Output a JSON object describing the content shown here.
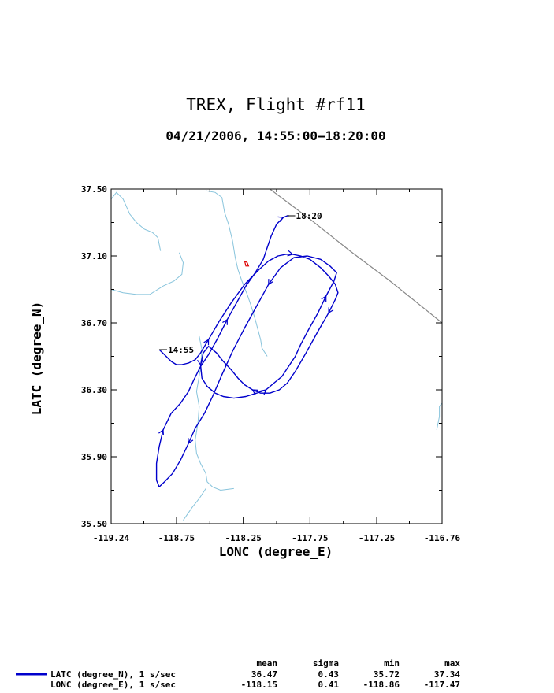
{
  "chart_data": {
    "type": "line",
    "title": "TREX, Flight #rf11",
    "subtitle": "04/21/2006, 14:55:00–18:20:00",
    "xlabel": "LONC (degree_E)",
    "ylabel": "LATC (degree_N)",
    "xlim": [
      -119.24,
      -116.76
    ],
    "ylim": [
      35.5,
      37.5
    ],
    "x_tick_labels": [
      "-119.24",
      "-118.75",
      "-118.25",
      "-117.75",
      "-117.25",
      "-116.76"
    ],
    "x_tick_values": [
      -119.24,
      -118.75,
      -118.25,
      -117.75,
      -117.25,
      -116.76
    ],
    "y_tick_labels": [
      "37.50",
      "37.10",
      "36.70",
      "36.30",
      "35.90",
      "35.50"
    ],
    "y_tick_values": [
      37.5,
      37.1,
      36.7,
      36.3,
      35.9,
      35.5
    ],
    "grid": false,
    "colors": {
      "flight_track": "#0000cc",
      "rivers": "#88c4dc",
      "border": "#888888",
      "lake": "#dd0000"
    },
    "annotations": [
      {
        "text": "14:55",
        "x": -118.88,
        "y": 36.54
      },
      {
        "text": "18:20",
        "x": -117.92,
        "y": 37.34
      }
    ],
    "series": [
      {
        "name": "LATC (degree_N), 1 s/sec",
        "x": [
          -118.88,
          -118.84,
          -118.79,
          -118.75,
          -118.71,
          -118.66,
          -118.61,
          -118.57,
          -118.51,
          -118.43,
          -118.34,
          -118.24,
          -118.13,
          -118.06,
          -117.99,
          -117.93,
          -117.88,
          -117.82,
          -117.75,
          -117.67,
          -117.61,
          -117.56,
          -117.54,
          -117.56,
          -117.61,
          -117.69,
          -117.78,
          -117.86,
          -117.92,
          -117.98,
          -118.05,
          -118.12,
          -118.18,
          -118.24,
          -118.29,
          -118.34,
          -118.4,
          -118.45,
          -118.51,
          -118.55,
          -118.57,
          -118.56,
          -118.52,
          -118.46,
          -118.4,
          -118.32,
          -118.23,
          -118.15,
          -118.08,
          -118.02,
          -117.96,
          -117.91,
          -117.86,
          -117.82,
          -117.76,
          -117.69,
          -117.63,
          -117.57,
          -117.55,
          -117.6,
          -117.67,
          -117.77,
          -117.87,
          -117.97,
          -118.06,
          -118.15,
          -118.24,
          -118.33,
          -118.41,
          -118.48,
          -118.54,
          -118.61,
          -118.66,
          -118.72,
          -118.78,
          -118.84,
          -118.88,
          -118.9,
          -118.9,
          -118.88,
          -118.85,
          -118.79,
          -118.72,
          -118.66,
          -118.62,
          -118.57,
          -118.51,
          -118.44,
          -118.37,
          -118.3,
          -118.23,
          -118.16,
          -118.1,
          -118.07,
          -118.04,
          -118.0,
          -117.95,
          -117.92,
          -117.91,
          -117.92
        ],
        "y": [
          36.54,
          36.51,
          36.47,
          36.45,
          36.45,
          36.46,
          36.48,
          36.52,
          36.6,
          36.71,
          36.82,
          36.93,
          37.02,
          37.07,
          37.1,
          37.11,
          37.11,
          37.1,
          37.08,
          37.03,
          36.98,
          36.93,
          36.88,
          36.84,
          36.76,
          36.65,
          36.52,
          36.41,
          36.34,
          36.3,
          36.28,
          36.28,
          36.3,
          36.33,
          36.37,
          36.42,
          36.47,
          36.52,
          36.56,
          36.52,
          36.45,
          36.37,
          36.32,
          36.28,
          36.26,
          36.25,
          36.26,
          36.28,
          36.3,
          36.34,
          36.38,
          36.44,
          36.5,
          36.57,
          36.66,
          36.76,
          36.86,
          36.95,
          37.0,
          37.04,
          37.08,
          37.1,
          37.09,
          37.03,
          36.93,
          36.8,
          36.67,
          36.53,
          36.39,
          36.26,
          36.16,
          36.07,
          35.98,
          35.88,
          35.8,
          35.75,
          35.72,
          35.76,
          35.86,
          35.96,
          36.06,
          36.16,
          36.22,
          36.29,
          36.36,
          36.44,
          36.51,
          36.61,
          36.72,
          36.82,
          36.92,
          37.0,
          37.08,
          37.15,
          37.22,
          37.29,
          37.33,
          37.34,
          37.34,
          37.34
        ]
      }
    ],
    "legend": {
      "placement": "bottom",
      "headers": [
        "mean",
        "sigma",
        "min",
        "max"
      ],
      "rows": [
        {
          "label": "LATC (degree_N), 1 s/sec",
          "mean": "36.47",
          "sigma": "0.43",
          "min": "35.72",
          "max": "37.34"
        },
        {
          "label": "LONC (degree_E), 1 s/sec",
          "mean": "-118.15",
          "sigma": "0.41",
          "min": "-118.86",
          "max": "-117.47"
        }
      ]
    },
    "map_features": {
      "rivers": [
        {
          "x": [
            -119.24,
            -119.2,
            -119.15,
            -119.1,
            -119.05,
            -118.99
          ],
          "y": [
            37.44,
            37.48,
            37.44,
            37.35,
            37.3,
            37.26
          ]
        },
        {
          "x": [
            -118.99,
            -118.93,
            -118.89,
            -118.87
          ],
          "y": [
            37.26,
            37.24,
            37.21,
            37.13
          ]
        },
        {
          "x": [
            -118.73,
            -118.7,
            -118.71,
            -118.77,
            -118.85,
            -118.95,
            -119.05,
            -119.15,
            -119.24
          ],
          "y": [
            37.12,
            37.06,
            36.99,
            36.95,
            36.92,
            36.87,
            36.87,
            36.88,
            36.9
          ]
        },
        {
          "x": [
            -118.53,
            -118.46,
            -118.41,
            -118.39,
            -118.36,
            -118.33,
            -118.31,
            -118.29,
            -118.26,
            -118.22,
            -118.19,
            -118.16,
            -118.14,
            -118.12,
            -118.11,
            -118.07
          ],
          "y": [
            37.49,
            37.48,
            37.45,
            37.36,
            37.29,
            37.19,
            37.09,
            37.02,
            36.95,
            36.87,
            36.8,
            36.72,
            36.66,
            36.6,
            36.55,
            36.5
          ]
        },
        {
          "x": [
            -118.58,
            -118.56,
            -118.57,
            -118.6,
            -118.58,
            -118.59,
            -118.61,
            -118.6,
            -118.57,
            -118.53,
            -118.52,
            -118.48,
            -118.42,
            -118.32
          ],
          "y": [
            36.62,
            36.54,
            36.43,
            36.29,
            36.2,
            36.1,
            36.0,
            35.92,
            35.86,
            35.8,
            35.75,
            35.72,
            35.7,
            35.71
          ]
        },
        {
          "x": [
            -118.53,
            -118.58,
            -118.63,
            -118.7
          ],
          "y": [
            35.71,
            35.65,
            35.6,
            35.52
          ]
        },
        {
          "x": [
            -116.8,
            -116.78,
            -116.78,
            -116.76
          ],
          "y": [
            36.06,
            36.14,
            36.2,
            36.22
          ]
        }
      ],
      "border": {
        "x": [
          -118.05,
          -117.75,
          -117.45,
          -117.15,
          -116.76
        ],
        "y": [
          37.5,
          37.32,
          37.13,
          36.95,
          36.7
        ]
      },
      "lake": {
        "x": [
          -118.24,
          -118.22,
          -118.21,
          -118.23,
          -118.24
        ],
        "y": [
          37.07,
          37.06,
          37.04,
          37.04,
          37.07
        ]
      }
    }
  }
}
